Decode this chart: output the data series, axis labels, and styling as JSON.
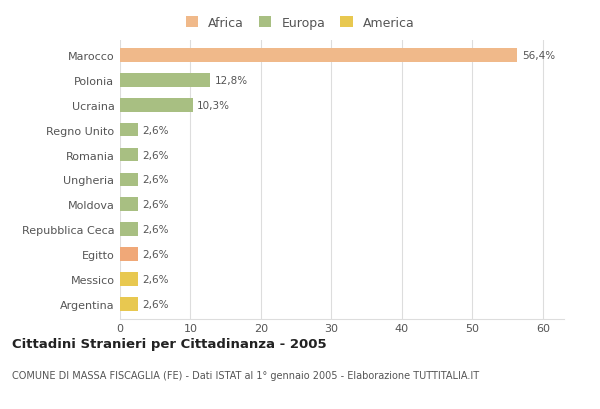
{
  "countries": [
    "Marocco",
    "Polonia",
    "Ucraina",
    "Regno Unito",
    "Romania",
    "Ungheria",
    "Moldova",
    "Repubblica Ceca",
    "Egitto",
    "Messico",
    "Argentina"
  ],
  "values": [
    56.4,
    12.8,
    10.3,
    2.6,
    2.6,
    2.6,
    2.6,
    2.6,
    2.6,
    2.6,
    2.6
  ],
  "labels": [
    "56,4%",
    "12,8%",
    "10,3%",
    "2,6%",
    "2,6%",
    "2,6%",
    "2,6%",
    "2,6%",
    "2,6%",
    "2,6%",
    "2,6%"
  ],
  "colors": [
    "#f0b98a",
    "#a8bf82",
    "#a8bf82",
    "#a8bf82",
    "#a8bf82",
    "#a8bf82",
    "#a8bf82",
    "#a8bf82",
    "#f0a878",
    "#e8c850",
    "#e8c850"
  ],
  "legend_labels": [
    "Africa",
    "Europa",
    "America"
  ],
  "legend_colors": [
    "#f0b98a",
    "#a8bf82",
    "#e8c850"
  ],
  "xlim": [
    0,
    63
  ],
  "xticks": [
    0,
    10,
    20,
    30,
    40,
    50,
    60
  ],
  "title": "Cittadini Stranieri per Cittadinanza - 2005",
  "subtitle": "COMUNE DI MASSA FISCAGLIA (FE) - Dati ISTAT al 1° gennaio 2005 - Elaborazione TUTTITALIA.IT",
  "bg_color": "#ffffff",
  "grid_color": "#dddddd",
  "label_color": "#888888",
  "text_color": "#555555"
}
